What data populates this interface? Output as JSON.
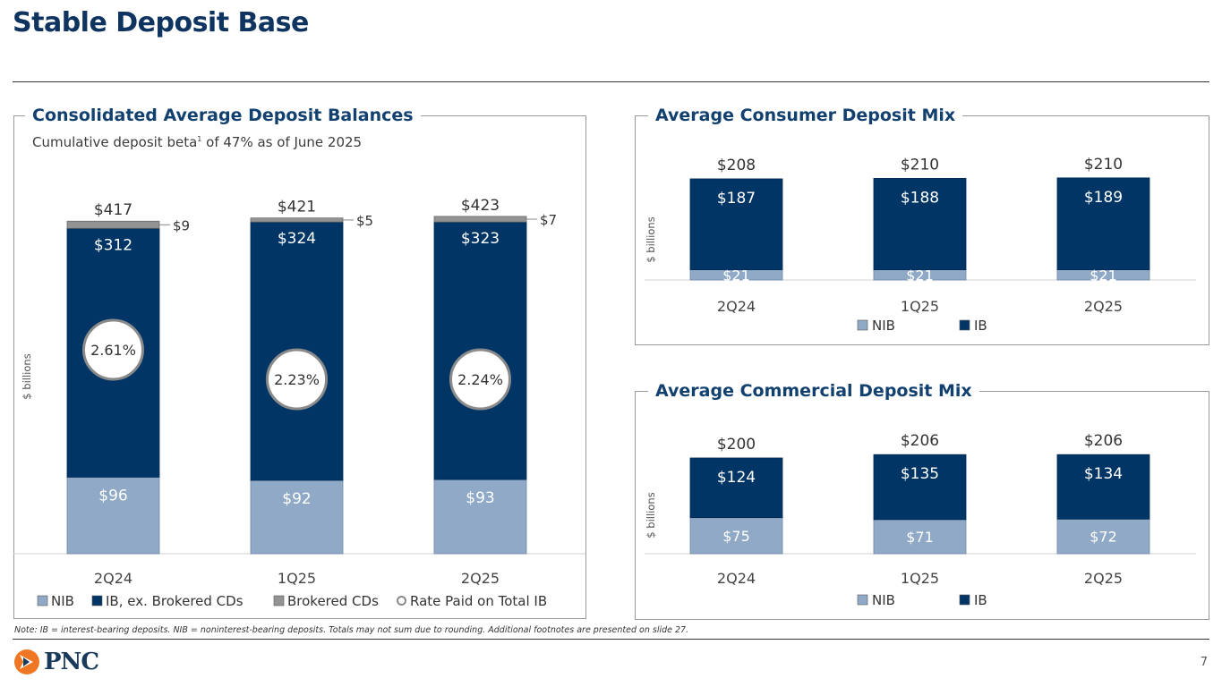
{
  "page": {
    "title": "Stable Deposit Base",
    "page_number": "7",
    "note": "Note: IB = interest-bearing deposits. NIB = noninterest-bearing deposits. Totals may not sum due to rounding. Additional footnotes are presented on slide 27.",
    "logo_text": "PNC",
    "subtitle_pre": "Cumulative deposit beta",
    "subtitle_sup": "1",
    "subtitle_post": " of 47% as of June 2025"
  },
  "colors": {
    "nib": "#8fa9c6",
    "ib": "#003566",
    "brokered": "#939393",
    "rate_circle": "#8a8a8a",
    "title": "#0f3460"
  },
  "chart_data": [
    {
      "id": "consolidated",
      "type": "bar",
      "stacked": true,
      "title": "Consolidated Average Deposit Balances",
      "ylabel": "$ billions",
      "categories": [
        "2Q24",
        "1Q25",
        "2Q25"
      ],
      "series": [
        {
          "name": "NIB",
          "values": [
            96,
            92,
            93
          ],
          "labels": [
            "$96",
            "$92",
            "$93"
          ]
        },
        {
          "name": "IB, ex. Brokered CDs",
          "values": [
            312,
            324,
            323
          ],
          "labels": [
            "$312",
            "$324",
            "$323"
          ]
        },
        {
          "name": "Brokered CDs",
          "values": [
            9,
            5,
            7
          ],
          "labels": [
            "$9",
            "$5",
            "$7"
          ]
        }
      ],
      "totals": [
        "$417",
        "$421",
        "$423"
      ],
      "rate_paid_on_total_ib": [
        "2.61%",
        "2.23%",
        "2.24%"
      ],
      "legend": [
        "NIB",
        "IB, ex. Brokered CDs",
        "Brokered CDs",
        "Rate Paid on Total IB"
      ],
      "ylim": [
        0,
        450
      ]
    },
    {
      "id": "consumer",
      "type": "bar",
      "stacked": true,
      "title": "Average Consumer Deposit Mix",
      "ylabel": "$ billions",
      "categories": [
        "2Q24",
        "1Q25",
        "2Q25"
      ],
      "series": [
        {
          "name": "NIB",
          "values": [
            21,
            21,
            21
          ],
          "labels": [
            "$21",
            "$21",
            "$21"
          ]
        },
        {
          "name": "IB",
          "values": [
            187,
            188,
            189
          ],
          "labels": [
            "$187",
            "$188",
            "$189"
          ]
        }
      ],
      "totals": [
        "$208",
        "$210",
        "$210"
      ],
      "legend": [
        "NIB",
        "IB"
      ],
      "ylim": [
        0,
        210
      ]
    },
    {
      "id": "commercial",
      "type": "bar",
      "stacked": true,
      "title": "Average Commercial Deposit Mix",
      "ylabel": "$ billions",
      "categories": [
        "2Q24",
        "1Q25",
        "2Q25"
      ],
      "series": [
        {
          "name": "NIB",
          "values": [
            75,
            71,
            72
          ],
          "labels": [
            "$75",
            "$71",
            "$72"
          ]
        },
        {
          "name": "IB",
          "values": [
            124,
            135,
            134
          ],
          "labels": [
            "$124",
            "$135",
            "$134"
          ]
        }
      ],
      "totals": [
        "$200",
        "$206",
        "$206"
      ],
      "legend": [
        "NIB",
        "IB"
      ],
      "ylim": [
        0,
        210
      ]
    }
  ]
}
